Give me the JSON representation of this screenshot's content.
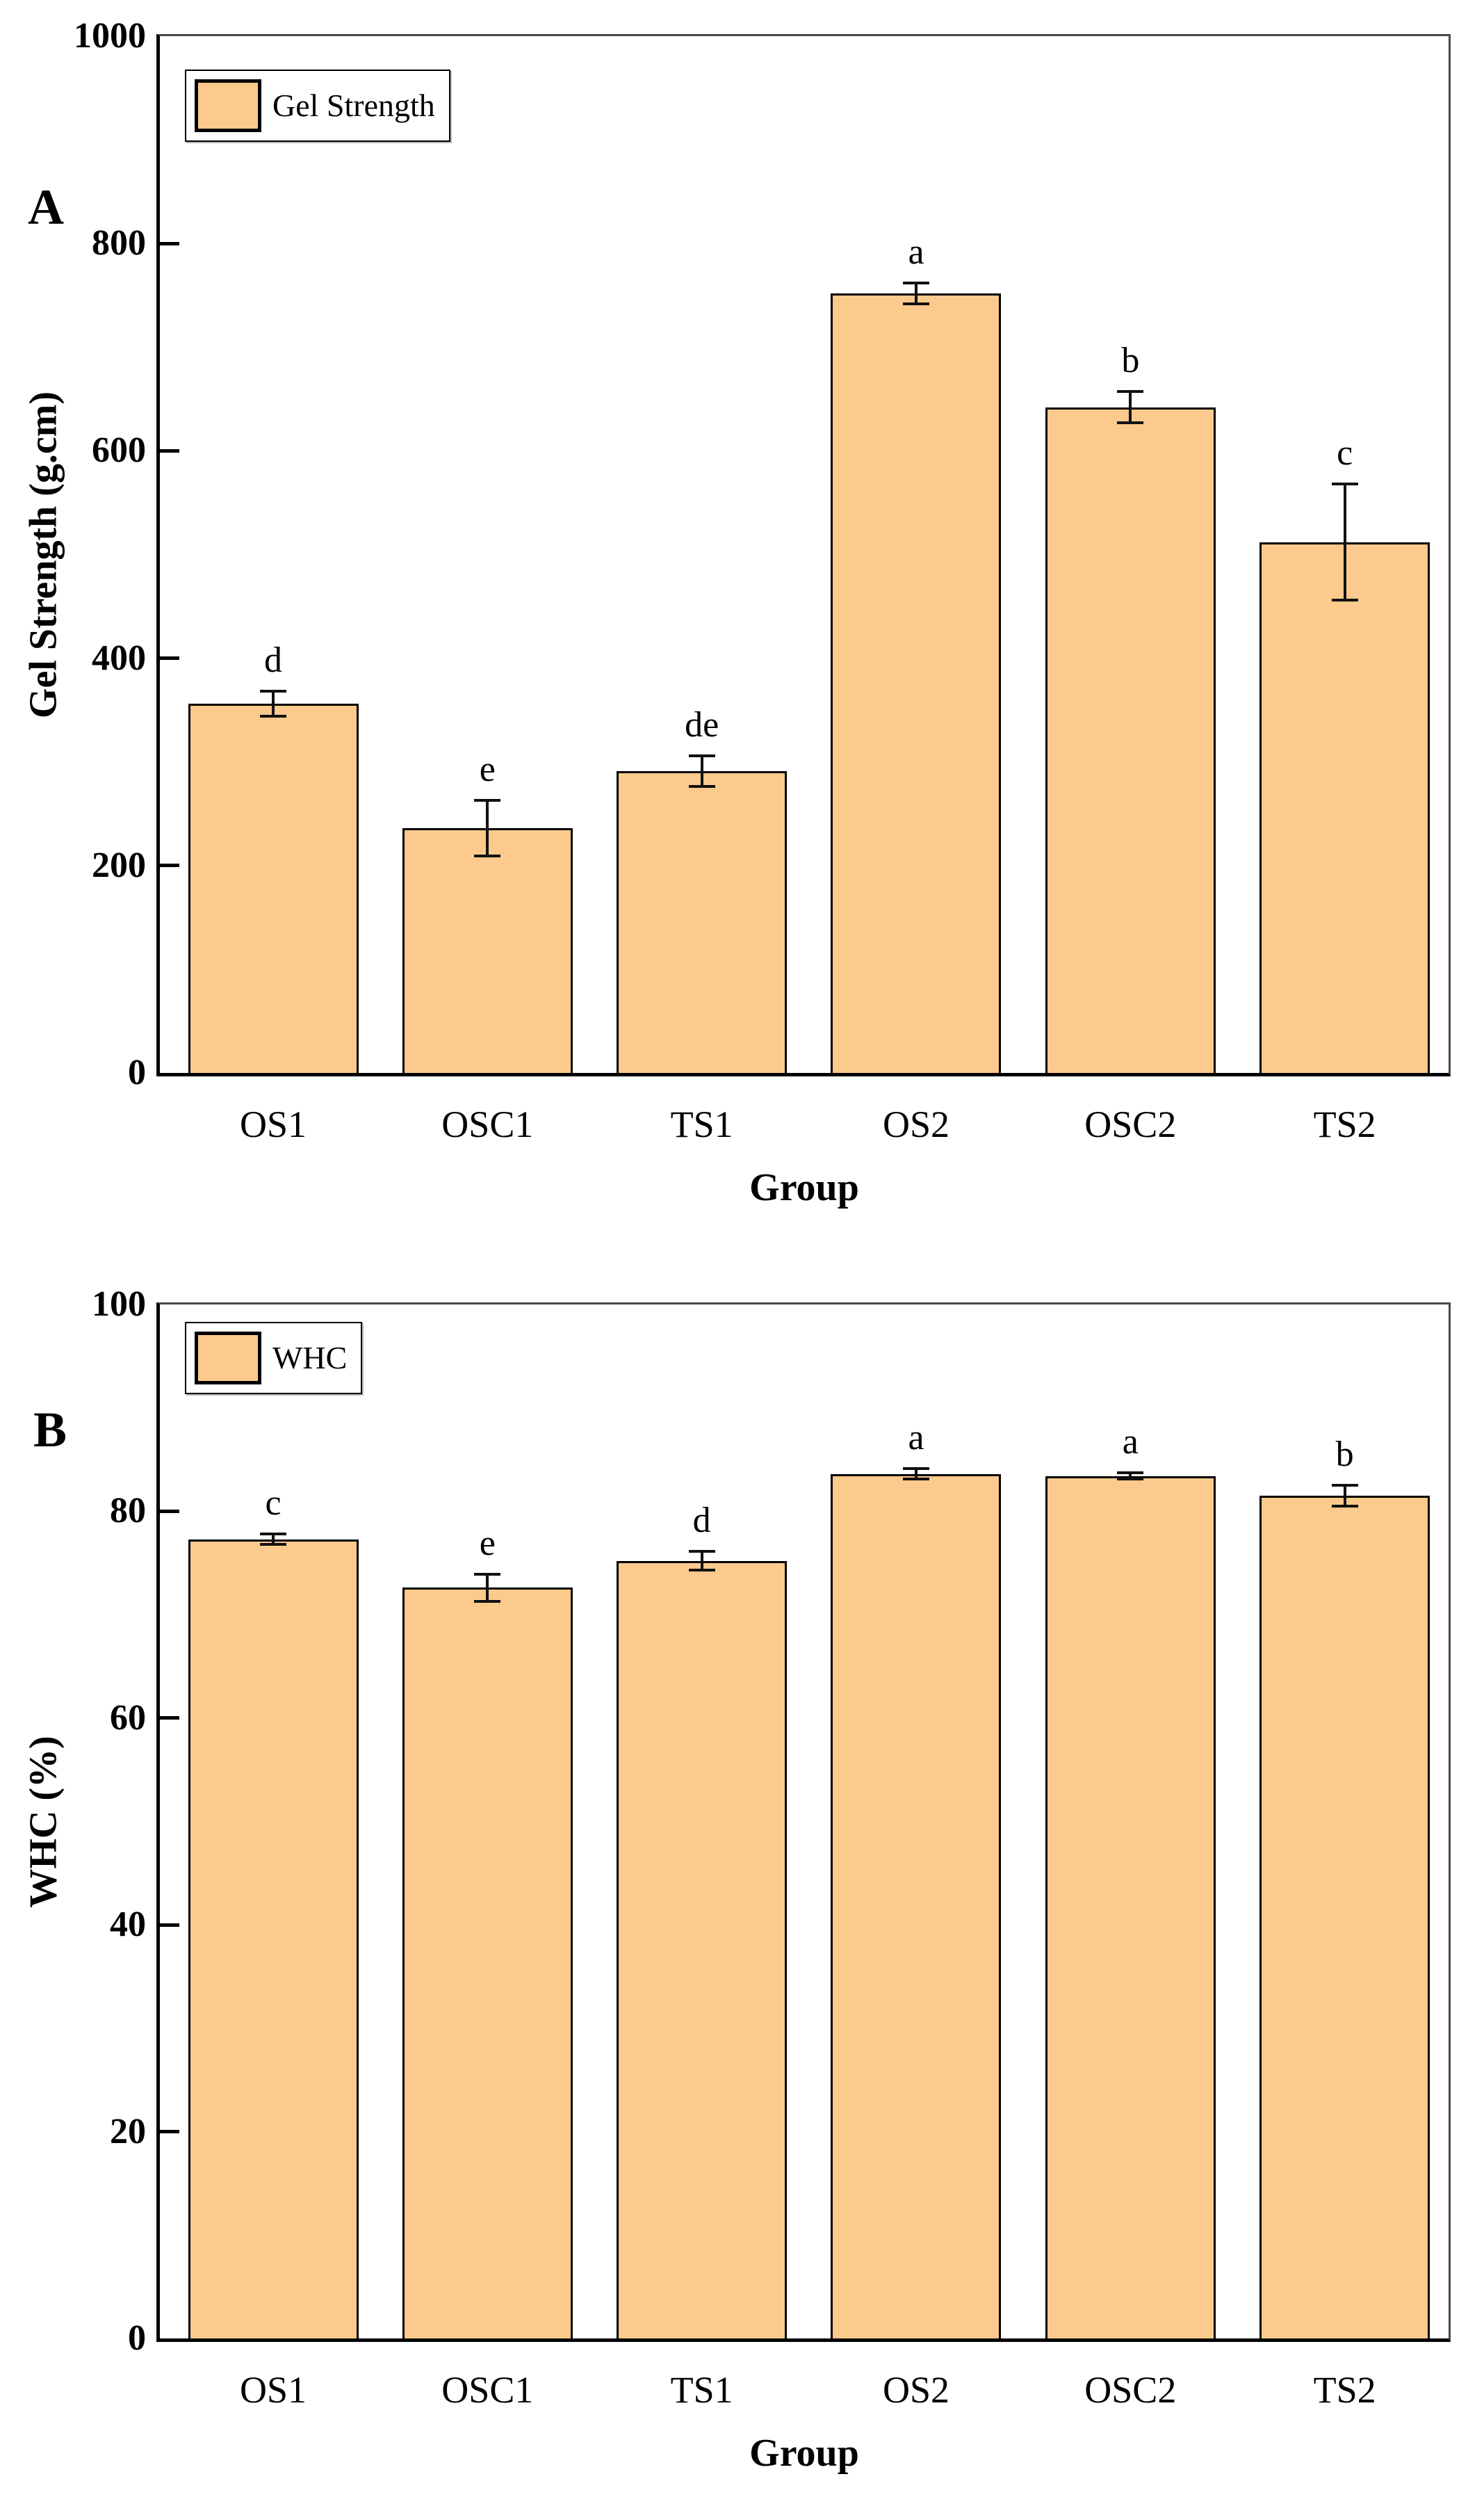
{
  "colors": {
    "bar_fill": "#FDCA8D",
    "bar_border": "#000000",
    "axis": "#000000",
    "frame": "#4A4A4A",
    "error_bar": "#111111",
    "background": "#FFFFFF"
  },
  "chart_data": [
    {
      "type": "bar",
      "panel_label": "A",
      "legend_label": "Gel Strength",
      "legend_position": "top-left",
      "title": "",
      "xlabel": "Group",
      "ylabel": "Gel Strength (g.cm)",
      "categories": [
        "OS1",
        "OSC1",
        "TS1",
        "OS2",
        "OSC2",
        "TS2"
      ],
      "values": [
        356,
        236,
        291,
        752,
        642,
        512
      ],
      "errors": [
        12,
        27,
        15,
        10,
        15,
        56
      ],
      "sig_letters": [
        "d",
        "e",
        "de",
        "a",
        "b",
        "c"
      ],
      "ylim": [
        0,
        1000
      ],
      "y_ticks": [
        0,
        200,
        400,
        600,
        800,
        1000
      ],
      "grid": false
    },
    {
      "type": "bar",
      "panel_label": "B",
      "legend_label": "WHC",
      "legend_position": "top-left",
      "title": "",
      "xlabel": "Group",
      "ylabel": "WHC (%)",
      "categories": [
        "OS1",
        "OSC1",
        "TS1",
        "OS2",
        "OSC2",
        "TS2"
      ],
      "values": [
        77.3,
        72.6,
        75.2,
        83.6,
        83.4,
        81.5
      ],
      "errors": [
        0.5,
        1.3,
        0.9,
        0.5,
        0.3,
        1.0
      ],
      "sig_letters": [
        "c",
        "e",
        "d",
        "a",
        "a",
        "b"
      ],
      "ylim": [
        0,
        100
      ],
      "y_ticks": [
        0,
        20,
        40,
        60,
        80,
        100
      ],
      "grid": false
    }
  ]
}
